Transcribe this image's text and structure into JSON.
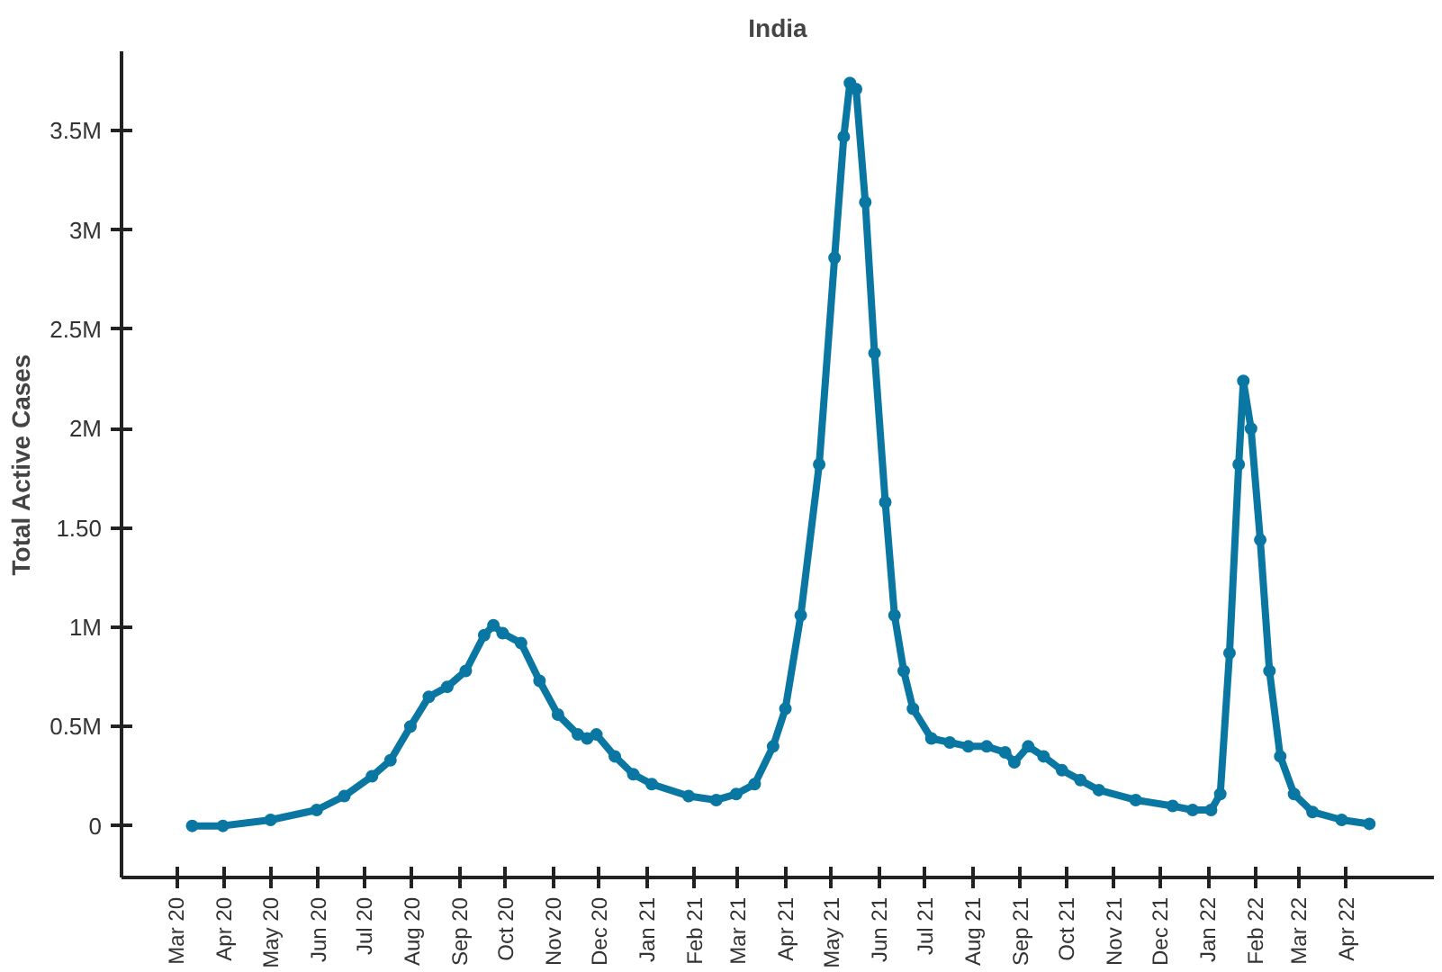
{
  "chart_data": {
    "type": "line",
    "title": "India",
    "ylabel": "Total Active Cases",
    "marker": "circle",
    "line_style": "solid",
    "grid": false,
    "x": [
      "2020-03-11",
      "2020-03-31",
      "2020-05-01",
      "2020-05-31",
      "2020-06-18",
      "2020-07-06",
      "2020-07-18",
      "2020-07-31",
      "2020-08-12",
      "2020-08-24",
      "2020-09-05",
      "2020-09-17",
      "2020-09-23",
      "2020-09-29",
      "2020-10-11",
      "2020-10-23",
      "2020-11-04",
      "2020-11-17",
      "2020-11-23",
      "2020-11-29",
      "2020-12-11",
      "2020-12-23",
      "2021-01-04",
      "2021-01-28",
      "2021-02-15",
      "2021-02-28",
      "2021-03-12",
      "2021-03-24",
      "2021-04-01",
      "2021-04-11",
      "2021-04-23",
      "2021-05-03",
      "2021-05-09",
      "2021-05-13",
      "2021-05-17",
      "2021-05-23",
      "2021-05-29",
      "2021-06-05",
      "2021-06-11",
      "2021-06-17",
      "2021-06-23",
      "2021-07-05",
      "2021-07-17",
      "2021-07-29",
      "2021-08-10",
      "2021-08-22",
      "2021-08-28",
      "2021-09-06",
      "2021-09-16",
      "2021-09-28",
      "2021-10-10",
      "2021-10-22",
      "2021-11-15",
      "2021-12-09",
      "2021-12-22",
      "2022-01-03",
      "2022-01-09",
      "2022-01-15",
      "2022-01-21",
      "2022-01-24",
      "2022-01-29",
      "2022-02-04",
      "2022-02-10",
      "2022-02-17",
      "2022-02-26",
      "2022-03-10",
      "2022-03-29",
      "2022-04-16"
    ],
    "series": [
      {
        "color": "#0a77a3",
        "values": [
          0,
          0,
          0.03,
          0.08,
          0.15,
          0.25,
          0.33,
          0.5,
          0.65,
          0.7,
          0.78,
          0.96,
          1.01,
          0.97,
          0.92,
          0.73,
          0.56,
          0.46,
          0.44,
          0.46,
          0.35,
          0.26,
          0.21,
          0.15,
          0.13,
          0.16,
          0.21,
          0.4,
          0.59,
          1.06,
          1.82,
          2.86,
          3.47,
          3.74,
          3.71,
          3.14,
          2.38,
          1.63,
          1.06,
          0.78,
          0.59,
          0.44,
          0.42,
          0.4,
          0.4,
          0.37,
          0.32,
          0.4,
          0.35,
          0.28,
          0.23,
          0.18,
          0.13,
          0.1,
          0.08,
          0.08,
          0.16,
          0.87,
          1.82,
          2.24,
          2.0,
          1.44,
          0.78,
          0.35,
          0.16,
          0.07,
          0.03,
          0.01
        ]
      }
    ],
    "xlim": [
      "2020-01-25",
      "2022-05-28"
    ],
    "xticks": [
      {
        "value": "2020-03-01",
        "label": "Mar 20"
      },
      {
        "value": "2020-04-01",
        "label": "Apr 20"
      },
      {
        "value": "2020-05-01",
        "label": "May 20"
      },
      {
        "value": "2020-06-01",
        "label": "Jun 20"
      },
      {
        "value": "2020-07-01",
        "label": "Jul 20"
      },
      {
        "value": "2020-08-01",
        "label": "Aug 20"
      },
      {
        "value": "2020-09-01",
        "label": "Sep 20"
      },
      {
        "value": "2020-10-01",
        "label": "Oct 20"
      },
      {
        "value": "2020-11-01",
        "label": "Nov 20"
      },
      {
        "value": "2020-12-01",
        "label": "Dec 20"
      },
      {
        "value": "2021-01-01",
        "label": "Jan 21"
      },
      {
        "value": "2021-02-01",
        "label": "Feb 21"
      },
      {
        "value": "2021-03-01",
        "label": "Mar 21"
      },
      {
        "value": "2021-04-01",
        "label": "Apr 21"
      },
      {
        "value": "2021-05-01",
        "label": "May 21"
      },
      {
        "value": "2021-06-01",
        "label": "Jun 21"
      },
      {
        "value": "2021-07-01",
        "label": "Jul 21"
      },
      {
        "value": "2021-08-01",
        "label": "Aug 21"
      },
      {
        "value": "2021-09-01",
        "label": "Sep 21"
      },
      {
        "value": "2021-10-01",
        "label": "Oct 21"
      },
      {
        "value": "2021-11-01",
        "label": "Nov 21"
      },
      {
        "value": "2021-12-01",
        "label": "Dec 21"
      },
      {
        "value": "2022-01-01",
        "label": "Jan 22"
      },
      {
        "value": "2022-02-01",
        "label": "Feb 22"
      },
      {
        "value": "2022-03-01",
        "label": "Mar 22"
      },
      {
        "value": "2022-04-01",
        "label": "Apr 22"
      }
    ],
    "ylim": [
      -0.26,
      3.9
    ],
    "yticks": [
      0,
      {
        "value": 0.5,
        "label": "0.5M"
      },
      {
        "value": 1,
        "label": "1M"
      },
      {
        "value": 1.5,
        "label": "1.50"
      },
      {
        "value": 2,
        "label": "2M"
      },
      {
        "value": 2.5,
        "label": "2.5M"
      },
      {
        "value": 3,
        "label": "3M"
      },
      {
        "value": 3.5,
        "label": "3.5M"
      }
    ]
  }
}
